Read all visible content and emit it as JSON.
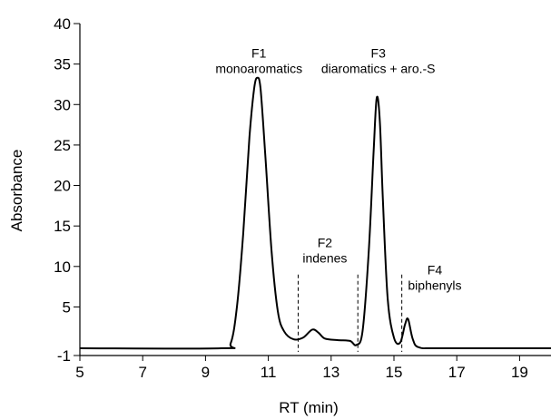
{
  "chart_data": {
    "type": "line",
    "title": "",
    "xlabel": "RT (min)",
    "ylabel": "Absorbance",
    "xlim": [
      5,
      20
    ],
    "ylim": [
      -1,
      40
    ],
    "x_ticks": [
      5,
      7,
      9,
      11,
      13,
      15,
      17,
      19
    ],
    "y_ticks": [
      -1,
      5,
      10,
      15,
      20,
      25,
      30,
      35,
      40
    ],
    "grid": false,
    "legend": "none",
    "line_color": "#000000",
    "series": [
      {
        "x": [
          5.0,
          9.5,
          9.8,
          10.0,
          10.2,
          10.4,
          10.55,
          10.65,
          10.75,
          10.9,
          11.1,
          11.3,
          11.5,
          11.8,
          12.1,
          12.4,
          12.6,
          12.8,
          13.2,
          13.6,
          13.8,
          14.0,
          14.2,
          14.35,
          14.45,
          14.55,
          14.65,
          14.8,
          15.0,
          15.2,
          15.35,
          15.45,
          15.6,
          15.8,
          16.5,
          20.0
        ],
        "y": [
          -0.1,
          -0.1,
          0.5,
          5.0,
          14.0,
          26.0,
          32.0,
          33.3,
          32.0,
          24.0,
          12.0,
          4.5,
          2.0,
          1.0,
          1.2,
          2.2,
          1.8,
          1.1,
          0.9,
          0.8,
          0.3,
          2.0,
          12.0,
          24.0,
          30.8,
          28.0,
          18.0,
          6.0,
          1.2,
          0.6,
          2.8,
          3.5,
          1.0,
          0.0,
          -0.1,
          -0.1
        ]
      }
    ],
    "annotations": [
      {
        "lines": [
          "F1",
          "monoaromatics"
        ],
        "x": 10.7,
        "y": 35.8
      },
      {
        "lines": [
          "F2",
          "indenes"
        ],
        "x": 12.8,
        "y": 12.4
      },
      {
        "lines": [
          "F3",
          "diaromatics + aro.-S"
        ],
        "x": 14.5,
        "y": 35.8
      },
      {
        "lines": [
          "F4",
          "biphenyls"
        ],
        "x": 16.3,
        "y": 9.0
      }
    ],
    "dividers": [
      {
        "x": 11.95,
        "y_top": 9.0
      },
      {
        "x": 13.85,
        "y_top": 9.0
      },
      {
        "x": 15.25,
        "y_top": 9.0
      }
    ]
  }
}
